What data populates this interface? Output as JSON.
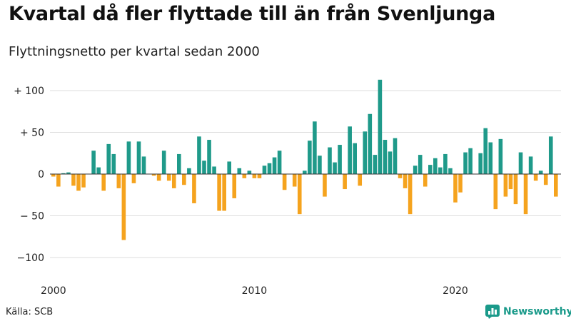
{
  "header": {
    "title": "Kvartal då fler flyttade till än från Svenljunga",
    "subtitle": "Flyttningsnetto per kvartal sedan 2000"
  },
  "footer": {
    "source": "Källa: SCB",
    "brand_name": "Newsworthy",
    "brand_icon": "bar-chart-logo-icon"
  },
  "colors": {
    "positive": "#1f9a8a",
    "negative": "#f5a31e",
    "gridline": "#dddddd",
    "zeroline": "#333333",
    "brand": "#1a9a8a"
  },
  "chart_data": {
    "type": "bar",
    "title": "Kvartal då fler flyttade till än från Svenljunga",
    "subtitle": "Flyttningsnetto per kvartal sedan 2000",
    "xlabel": "",
    "ylabel": "",
    "x_tick_labels": [
      "2000",
      "2010",
      "2020"
    ],
    "y_tick_labels": [
      {
        "value": 100,
        "label": "+ 100"
      },
      {
        "value": 50,
        "label": "+  50"
      },
      {
        "value": 0,
        "label": "0"
      },
      {
        "value": -50,
        "label": "− 50"
      },
      {
        "value": -100,
        "label": "−100"
      }
    ],
    "ylim": [
      -110,
      110
    ],
    "grid": true,
    "start_year": 2000,
    "quarters_per_year": 4,
    "values": [
      -3,
      -15,
      1,
      2,
      -14,
      -20,
      -16,
      0,
      28,
      8,
      -20,
      36,
      24,
      -17,
      -79,
      39,
      -11,
      39,
      21,
      0,
      -2,
      -8,
      28,
      -8,
      -17,
      24,
      -13,
      7,
      -35,
      45,
      16,
      41,
      9,
      -44,
      -44,
      15,
      -29,
      7,
      -5,
      4,
      -5,
      -5,
      10,
      13,
      20,
      28,
      -19,
      0,
      -15,
      -48,
      4,
      40,
      63,
      22,
      -27,
      32,
      14,
      35,
      -18,
      57,
      37,
      -14,
      51,
      72,
      23,
      113,
      41,
      27,
      43,
      -5,
      -17,
      -48,
      10,
      23,
      -15,
      11,
      19,
      8,
      24,
      7,
      -34,
      -22,
      26,
      31,
      0,
      25,
      55,
      38,
      -42,
      42,
      -27,
      -18,
      -36,
      26,
      -48,
      21,
      -8,
      4,
      -13,
      45,
      -27
    ]
  }
}
